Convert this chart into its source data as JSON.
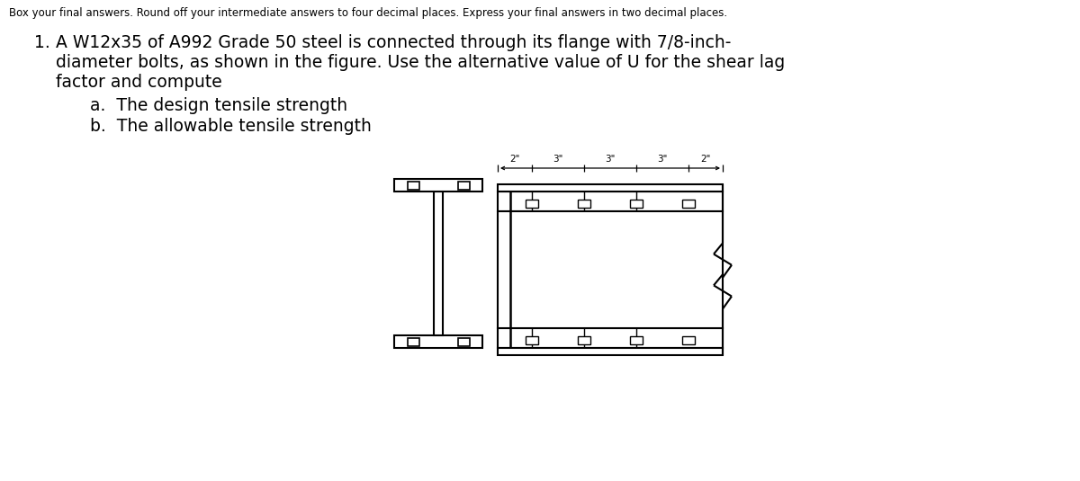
{
  "bg_color": "#ffffff",
  "instruction_text": "Box your final answers. Round off your intermediate answers to four decimal places. Express your final answers in two decimal places.",
  "problem_number": "1.",
  "problem_text_line1": "A W12x35 of A992 Grade 50 steel is connected through its flange with 7/8-inch-",
  "problem_text_line2": "diameter bolts, as shown in the figure. Use the alternative value of U for the shear lag",
  "problem_text_line3": "factor and compute",
  "sub_a": "a.  The design tensile strength",
  "sub_b": "b.  The allowable tensile strength",
  "line_color": "#000000",
  "text_color": "#000000",
  "seg_labels": [
    "2\"",
    "3\"",
    "3\"",
    "3\"",
    "2\""
  ],
  "seg_values": [
    2,
    3,
    3,
    3,
    2
  ]
}
